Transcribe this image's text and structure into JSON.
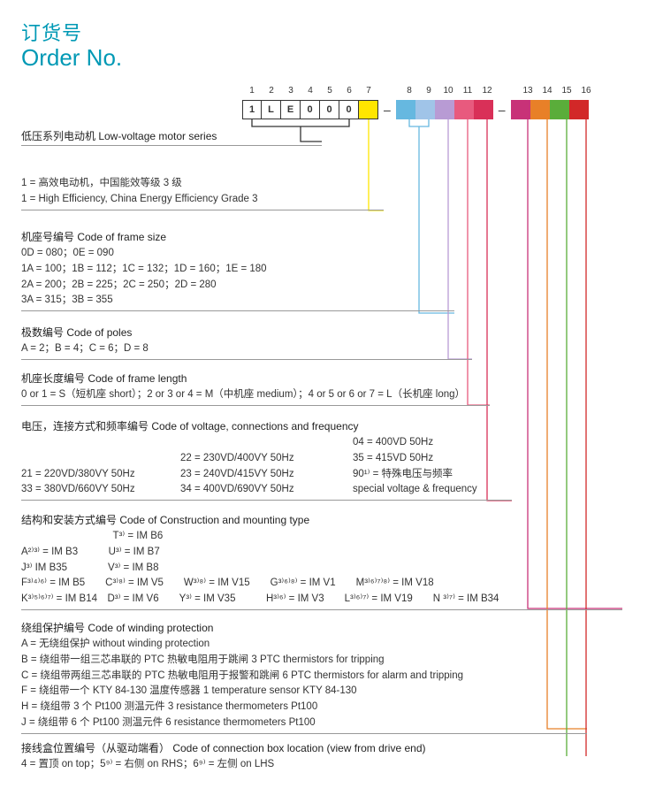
{
  "title_cn": "订货号",
  "title_en": "Order No.",
  "cell_nums": [
    "1",
    "2",
    "3",
    "4",
    "5",
    "6",
    "7",
    "8",
    "9",
    "10",
    "11",
    "12",
    "13",
    "14",
    "15",
    "16"
  ],
  "cells_left": [
    "1",
    "L",
    "E",
    "0",
    "0",
    "0",
    ""
  ],
  "cell_colors_mid": [
    "#66b8e0",
    "#a0c4e8",
    "#b89bd4",
    "#e85a7e",
    "#d93058"
  ],
  "cell_colors_right": [
    "#c83278",
    "#e88028",
    "#5aad3a",
    "#d22828"
  ],
  "dash": "–",
  "line_colors": {
    "s0": "#333333",
    "s1": "#ffe600",
    "s2": "#66b8e0",
    "s3": "#a0c4e8",
    "s4": "#b89bd4",
    "s5": "#e85a7e",
    "s6": "#d93058",
    "s7": "#c83278",
    "s8": "#e88028",
    "s9": "#5aad3a",
    "s10": "#d22828"
  },
  "s0_hdr": "低压系列电动机   Low-voltage motor series",
  "s1_line1": "1 = 高效电动机，中国能效等级 3 级",
  "s1_line2": "1 = High Efficiency, China Energy Efficiency Grade 3",
  "s2_hdr": "机座号编号   Code of frame size",
  "s2_l1": "0D = 080；0E = 090",
  "s2_l2": "1A = 100；1B = 112；1C = 132；1D = 160；1E = 180",
  "s2_l3": "2A = 200；2B = 225；2C = 250；2D = 280",
  "s2_l4": "3A = 315；3B = 355",
  "s3_hdr": "极数编号   Code of poles",
  "s3_l1": "A = 2；B = 4；C = 6；D = 8",
  "s4_hdr": "机座长度编号   Code of frame length",
  "s4_l1": "0 or 1 = S（短机座 short）；2 or 3 or 4 = M（中机座 medium）；4 or 5 or 6 or 7 = L（长机座 long）",
  "s5_hdr": "电压，连接方式和频率编号   Code of voltage, connections and frequency",
  "s5_r1c1": "",
  "s5_r1c2": "",
  "s5_r1c3": "04 = 400VD 50Hz",
  "s5_r2c1": "",
  "s5_r2c2": "22 = 230VD/400VY 50Hz",
  "s5_r2c3": "35 = 415VD 50Hz",
  "s5_r3c1": "21 = 220VD/380VY 50Hz",
  "s5_r3c2": "23 = 240VD/415VY 50Hz",
  "s5_r3c3": "90¹⁾ = 特殊电压与频率",
  "s5_r4c1": "33 = 380VD/660VY 50Hz",
  "s5_r4c2": "34 = 400VD/690VY 50Hz",
  "s5_r4c3": "special voltage & frequency",
  "s6_hdr": "结构和安装方式编号   Code of Construction and mounting type",
  "s6_r1": "　　　　　　　　　T³⁾ = IM B6",
  "s6_r2": "A²⁾³⁾ = IM B3　　　U³⁾ = IM B7",
  "s6_r3": "J³⁾ IM B35　　　　V³⁾ = IM B8",
  "s6_r4": "F³⁾⁴⁾⁶⁾ = IM B5　　C³⁾⁸⁾ = IM V5　　W³⁾⁸⁾ = IM V15　　G³⁾⁶⁾⁸⁾ = IM V1　　M³⁾⁶⁾⁷⁾⁸⁾ = IM V18",
  "s6_r5": "K³⁾⁵⁾⁶⁾⁷⁾ = IM B14　D³⁾ = IM V6　　Y³⁾ = IM V35　　　H³⁾⁶⁾ = IM V3　　L³⁾⁶⁾⁷⁾ = IM V19　　N ³⁾⁷⁾ = IM B34",
  "s7_hdr": "绕组保护编号   Code of winding protection",
  "s7_l1": "A = 无绕组保护   without winding protection",
  "s7_l2": "B = 绕组带一组三芯串联的 PTC 热敏电阻用于跳闸   3 PTC thermistors for tripping",
  "s7_l3": "C = 绕组带两组三芯串联的 PTC 热敏电阻用于报警和跳闸   6 PTC thermistors for alarm and tripping",
  "s7_l4": "F = 绕组带一个 KTY 84-130 温度传感器   1 temperature sensor KTY 84-130",
  "s7_l5": "H = 绕组带 3 个 Pt100 测温元件   3 resistance thermometers Pt100",
  "s7_l6": "J = 绕组带 6 个 Pt100 测温元件   6 resistance thermometers Pt100",
  "s8_hdr": "接线盒位置编号（从驱动端看）   Code of connection box location (view from drive end)",
  "s8_l1": "4 = 置顶  on top；5⁹⁾ = 右侧  on RHS；6⁹⁾ = 左侧  on LHS"
}
